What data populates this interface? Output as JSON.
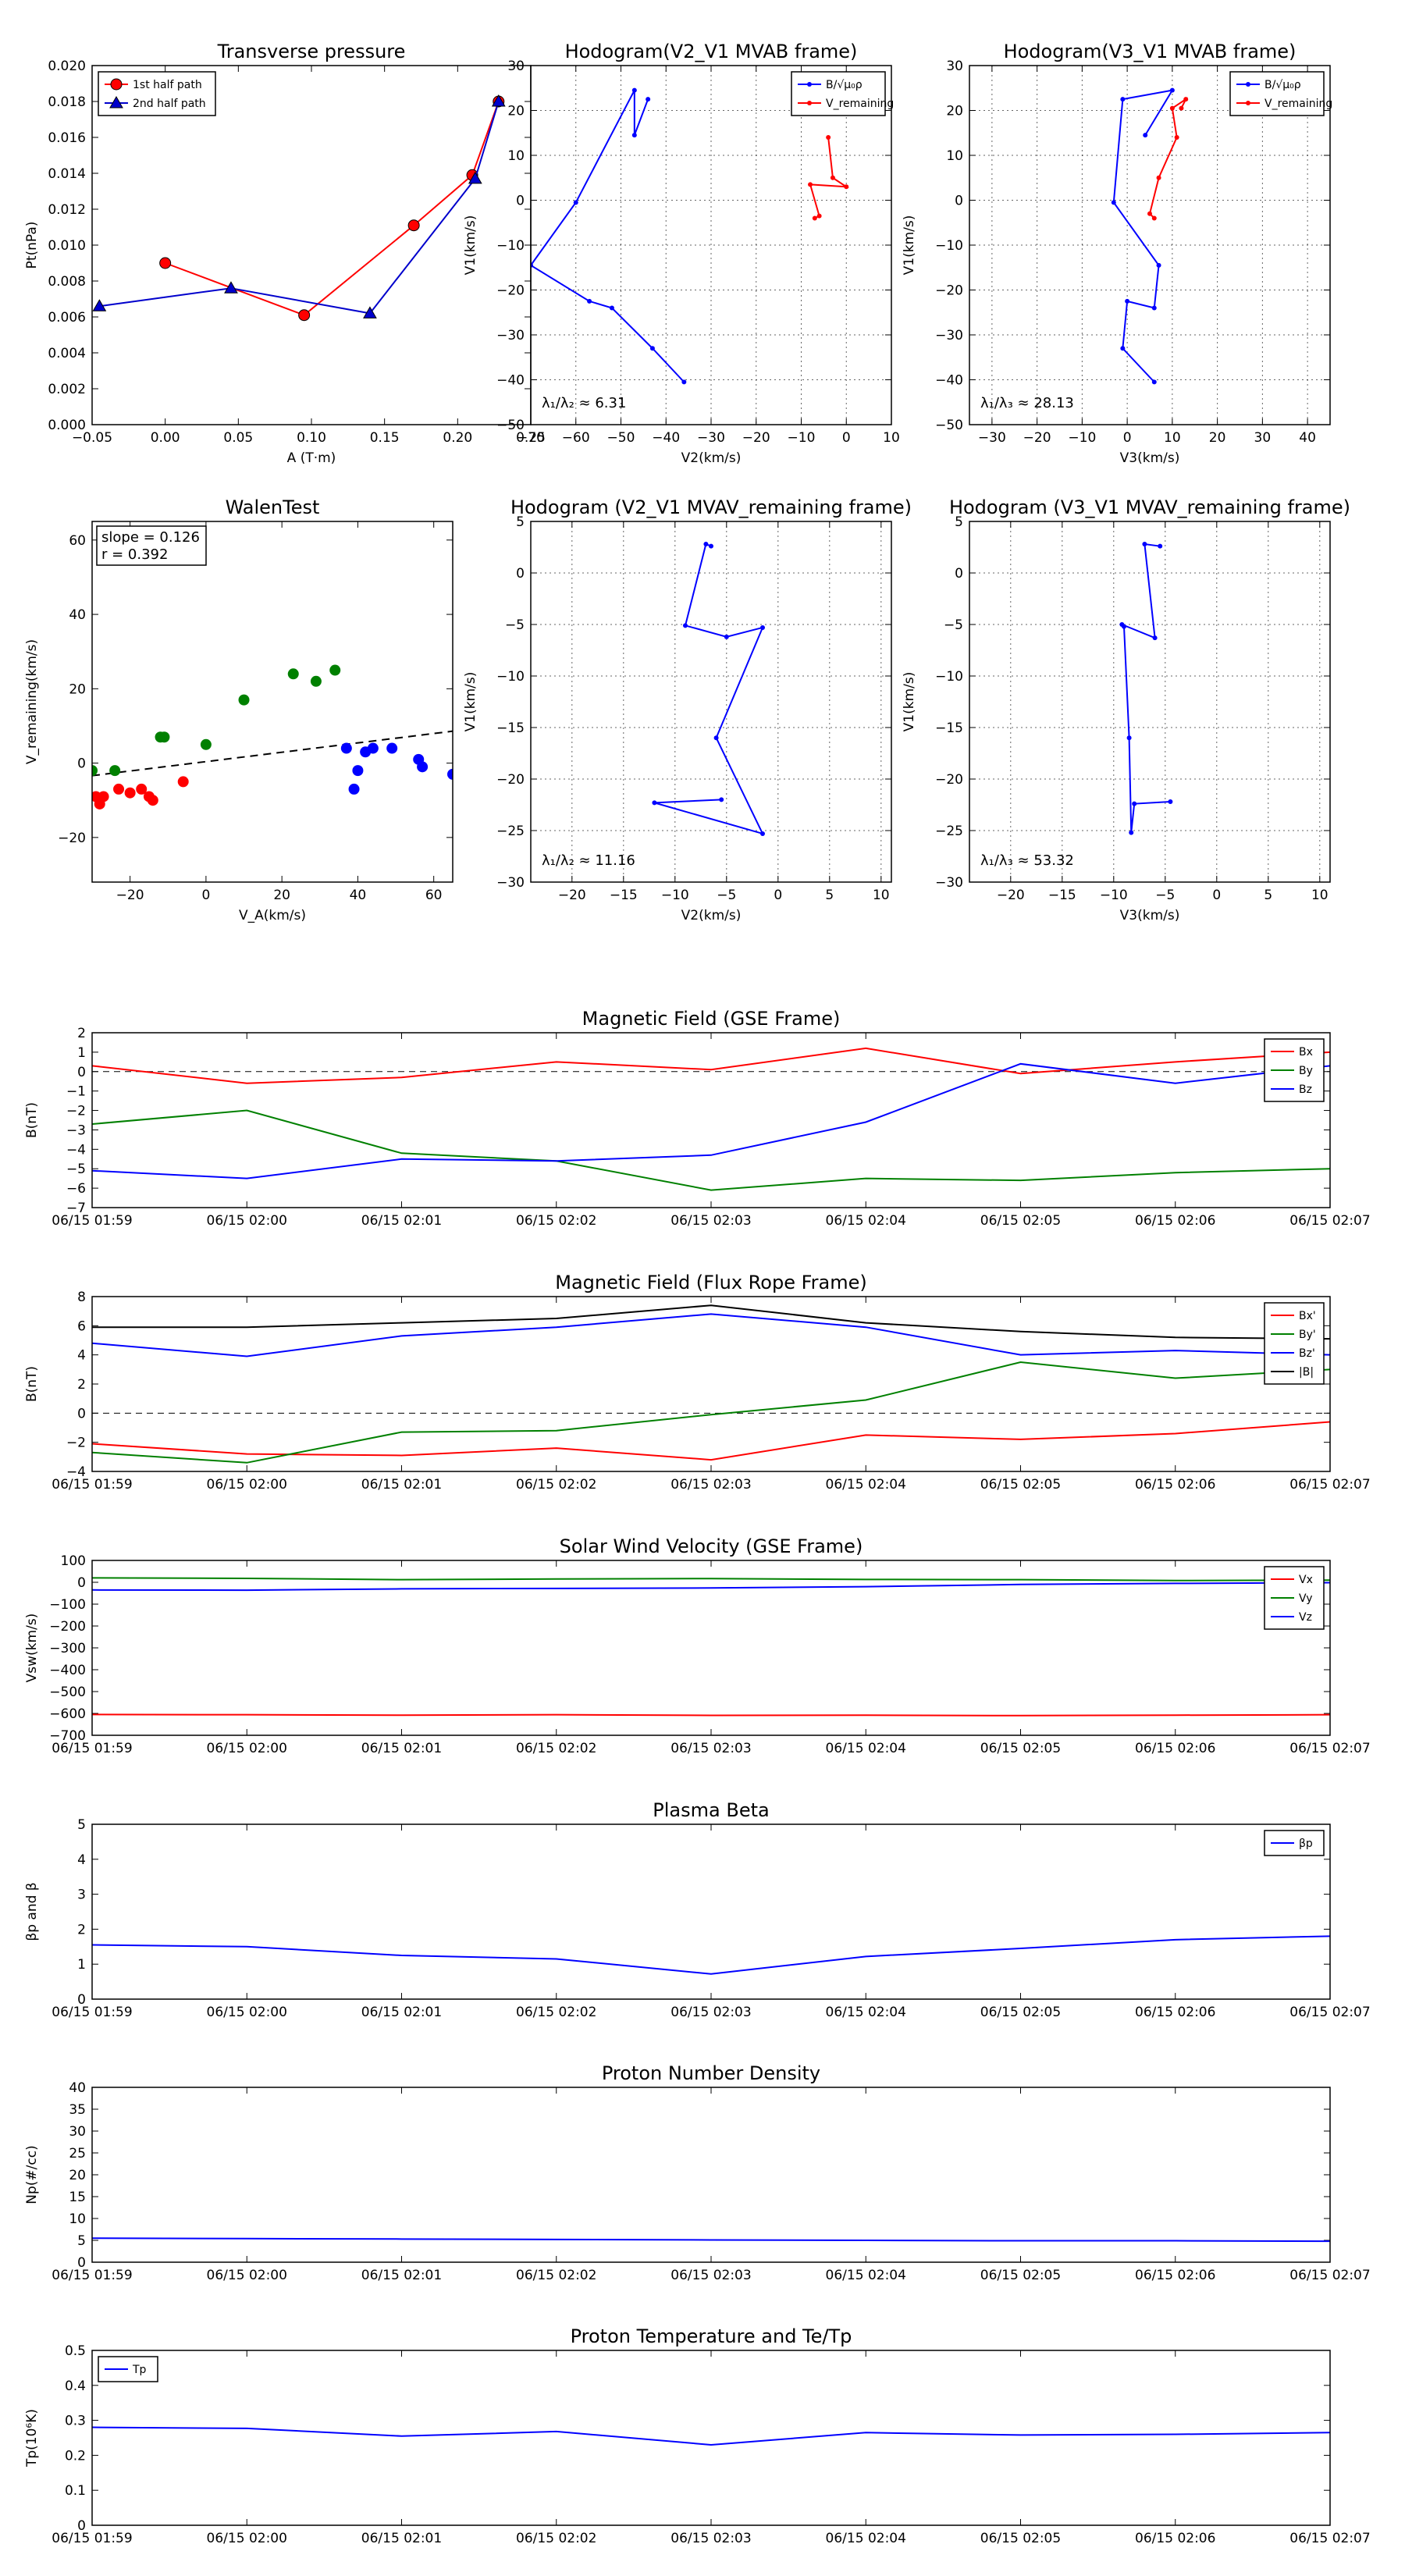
{
  "figure": {
    "background": "#ffffff"
  },
  "chart_data": [
    {
      "id": "transverse-pressure",
      "type": "line",
      "title": "Transverse pressure",
      "xlabel": "A (T·m)",
      "ylabel": "Pt(nPa)",
      "xlim": [
        -0.05,
        0.25
      ],
      "ylim": [
        0.0,
        0.02
      ],
      "xticks": [
        -0.05,
        0.0,
        0.05,
        0.1,
        0.15,
        0.2,
        0.25
      ],
      "xtick_labels": [
        "−0.05",
        "0.00",
        "0.05",
        "0.10",
        "0.15",
        "0.20",
        "0.25"
      ],
      "yticks": [
        0,
        0.002,
        0.004,
        0.006,
        0.008,
        0.01,
        0.012,
        0.014,
        0.016,
        0.018,
        0.02
      ],
      "ytick_labels": [
        "0.000",
        "0.002",
        "0.004",
        "0.006",
        "0.008",
        "0.010",
        "0.012",
        "0.014",
        "0.016",
        "0.018",
        "0.020"
      ],
      "grid": false,
      "legend": {
        "position": "top-left"
      },
      "series": [
        {
          "name": "1st half path",
          "color": "#ff0000",
          "marker": "circle",
          "x": [
            0.0,
            0.095,
            0.17,
            0.21,
            0.228
          ],
          "y": [
            0.009,
            0.0061,
            0.0111,
            0.0139,
            0.018
          ]
        },
        {
          "name": "2nd half path",
          "color": "#0000cc",
          "marker": "triangle",
          "x": [
            -0.045,
            0.045,
            0.14,
            0.212,
            0.228
          ],
          "y": [
            0.0066,
            0.0076,
            0.0062,
            0.0137,
            0.018
          ]
        }
      ]
    },
    {
      "id": "hodogram-v2v1-mvab",
      "type": "line",
      "title": "Hodogram(V2_V1 MVAB frame)",
      "xlabel": "V2(km/s)",
      "ylabel": "V1(km/s)",
      "xlim": [
        -70,
        10
      ],
      "ylim": [
        -50,
        30
      ],
      "xticks": [
        -70,
        -60,
        -50,
        -40,
        -30,
        -20,
        -10,
        0,
        10
      ],
      "yticks": [
        -50,
        -40,
        -30,
        -20,
        -10,
        0,
        10,
        20,
        30
      ],
      "grid": true,
      "annotation": "λ₁/λ₂ ≈ 6.31",
      "legend": {
        "position": "top-right"
      },
      "series": [
        {
          "name": "B/√μ₀ρ",
          "color": "#0000ff",
          "marker": "dot",
          "x": [
            -36,
            -43,
            -52,
            -57,
            -70,
            -60,
            -47,
            -47,
            -44
          ],
          "y": [
            -40.5,
            -33,
            -24,
            -22.5,
            -14.5,
            -0.5,
            24.5,
            14.5,
            22.5
          ]
        },
        {
          "name": "V_remaining",
          "color": "#ff0000",
          "marker": "dot",
          "x": [
            -4,
            -3,
            0,
            -8,
            -6,
            -7
          ],
          "y": [
            14,
            5,
            3,
            3.5,
            -3.5,
            -4
          ]
        }
      ]
    },
    {
      "id": "hodogram-v3v1-mvab",
      "type": "line",
      "title": "Hodogram(V3_V1 MVAB frame)",
      "xlabel": "V3(km/s)",
      "ylabel": "V1(km/s)",
      "xlim": [
        -35,
        45
      ],
      "ylim": [
        -50,
        30
      ],
      "xticks": [
        -30,
        -20,
        -10,
        0,
        10,
        20,
        30,
        40
      ],
      "yticks": [
        -50,
        -40,
        -30,
        -20,
        -10,
        0,
        10,
        20,
        30
      ],
      "grid": true,
      "annotation": "λ₁/λ₃ ≈ 28.13",
      "legend": {
        "position": "top-right"
      },
      "series": [
        {
          "name": "B/√μ₀ρ",
          "color": "#0000ff",
          "marker": "dot",
          "x": [
            6,
            -1,
            0,
            6,
            7,
            -3,
            -1,
            10,
            4
          ],
          "y": [
            -40.5,
            -33,
            -22.5,
            -24,
            -14.5,
            -0.5,
            22.5,
            24.5,
            14.5
          ]
        },
        {
          "name": "V_remaining",
          "color": "#ff0000",
          "marker": "dot",
          "x": [
            12,
            13,
            10,
            11,
            7,
            5,
            6
          ],
          "y": [
            20.5,
            22.5,
            20.5,
            14,
            5,
            -3,
            -4
          ]
        }
      ]
    },
    {
      "id": "walen-test",
      "type": "scatter",
      "title": "WalenTest",
      "xlabel": "V_A(km/s)",
      "ylabel": "V_remaining(km/s)",
      "xlim": [
        -30,
        65
      ],
      "ylim": [
        -32,
        65
      ],
      "xticks": [
        -20,
        0,
        20,
        40,
        60
      ],
      "yticks": [
        -20,
        0,
        20,
        40,
        60
      ],
      "grid": false,
      "annotation": [
        "slope = 0.126",
        "r = 0.392"
      ],
      "fit_line": {
        "slope": 0.126,
        "intercept": 0.4
      },
      "series": [
        {
          "color": "#ff0000",
          "x": [
            -29,
            -27,
            -28,
            -23,
            -20,
            -17,
            -14,
            -15,
            -6
          ],
          "y": [
            -9,
            -9,
            -11,
            -7,
            -8,
            -7,
            -10,
            -9,
            -5
          ]
        },
        {
          "color": "#008000",
          "x": [
            -30,
            -24,
            -12,
            -11,
            0,
            10,
            23,
            29,
            34
          ],
          "y": [
            -2,
            -2,
            7,
            7,
            5,
            17,
            24,
            22,
            25
          ]
        },
        {
          "color": "#0000ff",
          "x": [
            37,
            39,
            40,
            42,
            44,
            49,
            56,
            57,
            65
          ],
          "y": [
            4,
            -7,
            -2,
            3,
            4,
            4,
            1,
            -1,
            -3
          ]
        }
      ]
    },
    {
      "id": "hodogram-v2v1-mvav",
      "type": "line",
      "title": "Hodogram (V2_V1 MVAV_remaining frame)",
      "xlabel": "V2(km/s)",
      "ylabel": "V1(km/s)",
      "xlim": [
        -24,
        11
      ],
      "ylim": [
        -30,
        5
      ],
      "xticks": [
        -20,
        -15,
        -10,
        -5,
        0,
        5,
        10
      ],
      "yticks": [
        -30,
        -25,
        -20,
        -15,
        -10,
        -5,
        0,
        5
      ],
      "grid": true,
      "annotation": "λ₁/λ₂ ≈ 11.16",
      "series": [
        {
          "color": "#0000ff",
          "marker": "dot",
          "x": [
            -5.5,
            -12,
            -1.5,
            -6,
            -1.5,
            -5,
            -9,
            -7,
            -6.5
          ],
          "y": [
            -22,
            -22.3,
            -25.3,
            -16,
            -5.3,
            -6.2,
            -5.1,
            2.8,
            2.6
          ]
        }
      ]
    },
    {
      "id": "hodogram-v3v1-mvav",
      "type": "line",
      "title": "Hodogram (V3_V1 MVAV_remaining frame)",
      "xlabel": "V3(km/s)",
      "ylabel": "V1(km/s)",
      "xlim": [
        -24,
        11
      ],
      "ylim": [
        -30,
        5
      ],
      "xticks": [
        -20,
        -15,
        -10,
        -5,
        0,
        5,
        10
      ],
      "yticks": [
        -30,
        -25,
        -20,
        -15,
        -10,
        -5,
        0,
        5
      ],
      "grid": true,
      "annotation": "λ₁/λ₃ ≈ 53.32",
      "series": [
        {
          "color": "#0000ff",
          "marker": "dot",
          "x": [
            -4.5,
            -8,
            -8.3,
            -8.5,
            -9,
            -9.2,
            -6,
            -7,
            -5.5
          ],
          "y": [
            -22.2,
            -22.4,
            -25.2,
            -16,
            -5.2,
            -5,
            -6.3,
            2.8,
            2.6
          ]
        }
      ]
    },
    {
      "id": "magnetic-field-gse",
      "type": "line",
      "title": "Magnetic Field (GSE Frame)",
      "xlabel": "",
      "ylabel": "B(nT)",
      "ylim": [
        -7,
        2
      ],
      "yticks": [
        -7,
        -6,
        -5,
        -4,
        -3,
        -2,
        -1,
        0,
        1,
        2
      ],
      "x_labels": [
        "06/15 01:59",
        "06/15 02:00",
        "06/15 02:01",
        "06/15 02:02",
        "06/15 02:03",
        "06/15 02:04",
        "06/15 02:05",
        "06/15 02:06",
        "06/15 02:07"
      ],
      "zero_line": true,
      "legend": {
        "position": "top-right"
      },
      "series": [
        {
          "name": "Bx",
          "color": "#ff0000",
          "values": [
            0.3,
            -0.6,
            -0.3,
            0.5,
            0.1,
            1.2,
            -0.1,
            0.5,
            1.0
          ]
        },
        {
          "name": "By",
          "color": "#008000",
          "values": [
            -2.7,
            -2.0,
            -4.2,
            -4.6,
            -6.1,
            -5.5,
            -5.6,
            -5.2,
            -5.0
          ]
        },
        {
          "name": "Bz",
          "color": "#0000ff",
          "values": [
            -5.1,
            -5.5,
            -4.5,
            -4.6,
            -4.3,
            -2.6,
            0.4,
            -0.6,
            0.3
          ]
        }
      ]
    },
    {
      "id": "magnetic-field-flux-rope",
      "type": "line",
      "title": "Magnetic Field (Flux Rope Frame)",
      "xlabel": "",
      "ylabel": "B(nT)",
      "ylim": [
        -4,
        8
      ],
      "yticks": [
        -4,
        -2,
        0,
        2,
        4,
        6,
        8
      ],
      "x_labels": [
        "06/15 01:59",
        "06/15 02:00",
        "06/15 02:01",
        "06/15 02:02",
        "06/15 02:03",
        "06/15 02:04",
        "06/15 02:05",
        "06/15 02:06",
        "06/15 02:07"
      ],
      "zero_line": true,
      "legend": {
        "position": "top-right"
      },
      "series": [
        {
          "name": "Bx'",
          "color": "#ff0000",
          "values": [
            -2.1,
            -2.8,
            -2.9,
            -2.4,
            -3.2,
            -1.5,
            -1.8,
            -1.4,
            -0.6
          ]
        },
        {
          "name": "By'",
          "color": "#008000",
          "values": [
            -2.7,
            -3.4,
            -1.3,
            -1.2,
            -0.1,
            0.9,
            3.5,
            2.4,
            3.0
          ]
        },
        {
          "name": "Bz'",
          "color": "#0000ff",
          "values": [
            4.8,
            3.9,
            5.3,
            5.9,
            6.8,
            5.9,
            4.0,
            4.3,
            4.0
          ]
        },
        {
          "name": "|B|",
          "color": "#000000",
          "values": [
            5.9,
            5.9,
            6.2,
            6.5,
            7.4,
            6.2,
            5.6,
            5.2,
            5.1
          ]
        }
      ]
    },
    {
      "id": "solar-wind-velocity",
      "type": "line",
      "title": "Solar Wind Velocity (GSE Frame)",
      "xlabel": "",
      "ylabel": "Vsw(km/s)",
      "ylim": [
        -700,
        100
      ],
      "yticks": [
        -700,
        -600,
        -500,
        -400,
        -300,
        -200,
        -100,
        0,
        100
      ],
      "x_labels": [
        "06/15 01:59",
        "06/15 02:00",
        "06/15 02:01",
        "06/15 02:02",
        "06/15 02:03",
        "06/15 02:04",
        "06/15 02:05",
        "06/15 02:06",
        "06/15 02:07"
      ],
      "legend": {
        "position": "top-right"
      },
      "series": [
        {
          "name": "Vx",
          "color": "#ff0000",
          "values": [
            -605,
            -606,
            -608,
            -606,
            -609,
            -608,
            -610,
            -608,
            -606
          ]
        },
        {
          "name": "Vy",
          "color": "#008000",
          "values": [
            20,
            18,
            12,
            15,
            17,
            13,
            12,
            8,
            10
          ]
        },
        {
          "name": "Vz",
          "color": "#0000ff",
          "values": [
            -35,
            -36,
            -30,
            -28,
            -26,
            -20,
            -10,
            -5,
            -2
          ]
        }
      ]
    },
    {
      "id": "plasma-beta",
      "type": "line",
      "title": "Plasma Beta",
      "xlabel": "",
      "ylabel": "βp and β",
      "ylim": [
        0,
        5
      ],
      "yticks": [
        0,
        1,
        2,
        3,
        4,
        5
      ],
      "x_labels": [
        "06/15 01:59",
        "06/15 02:00",
        "06/15 02:01",
        "06/15 02:02",
        "06/15 02:03",
        "06/15 02:04",
        "06/15 02:05",
        "06/15 02:06",
        "06/15 02:07"
      ],
      "legend": {
        "position": "top-right"
      },
      "series": [
        {
          "name": "βp",
          "color": "#0000ff",
          "values": [
            1.55,
            1.5,
            1.25,
            1.15,
            0.72,
            1.22,
            1.45,
            1.7,
            1.8
          ]
        }
      ]
    },
    {
      "id": "proton-number-density",
      "type": "line",
      "title": "Proton Number Density",
      "xlabel": "",
      "ylabel": "Np(#/cc)",
      "ylim": [
        0,
        40
      ],
      "yticks": [
        0,
        5,
        10,
        15,
        20,
        25,
        30,
        35,
        40
      ],
      "x_labels": [
        "06/15 01:59",
        "06/15 02:00",
        "06/15 02:01",
        "06/15 02:02",
        "06/15 02:03",
        "06/15 02:04",
        "06/15 02:05",
        "06/15 02:06",
        "06/15 02:07"
      ],
      "series": [
        {
          "color": "#0000ff",
          "values": [
            5.5,
            5.4,
            5.3,
            5.2,
            5.1,
            5.0,
            4.9,
            4.9,
            4.8
          ]
        }
      ]
    },
    {
      "id": "proton-temperature",
      "type": "line",
      "title": "Proton Temperature and Te/Tp",
      "xlabel": "",
      "ylabel": "Tp(10⁶K)",
      "ylim": [
        0,
        0.5
      ],
      "yticks": [
        0,
        0.1,
        0.2,
        0.3,
        0.4,
        0.5
      ],
      "x_labels": [
        "06/15 01:59",
        "06/15 02:00",
        "06/15 02:01",
        "06/15 02:02",
        "06/15 02:03",
        "06/15 02:04",
        "06/15 02:05",
        "06/15 02:06",
        "06/15 02:07"
      ],
      "legend": {
        "position": "top-left"
      },
      "series": [
        {
          "name": "Tp",
          "color": "#0000ff",
          "values": [
            0.28,
            0.277,
            0.255,
            0.268,
            0.23,
            0.265,
            0.258,
            0.26,
            0.265
          ]
        }
      ]
    }
  ]
}
